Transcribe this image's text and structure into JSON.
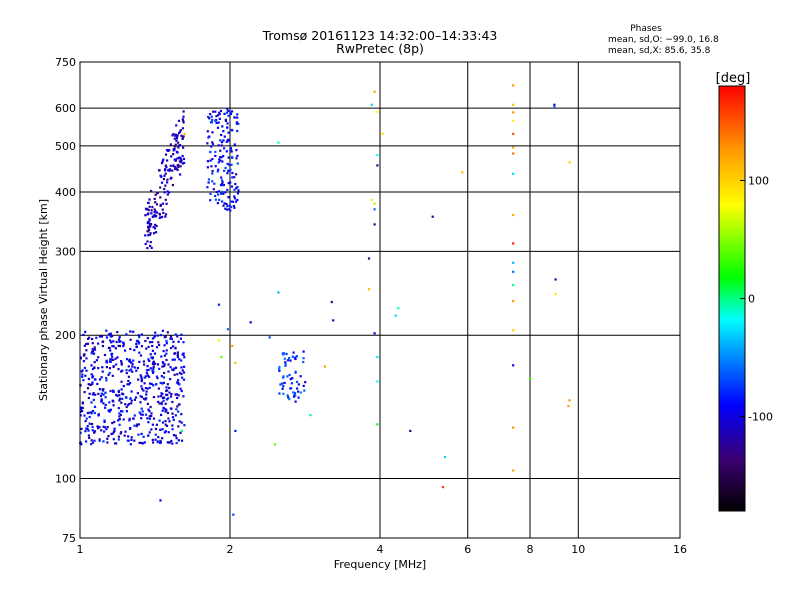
{
  "header": {
    "title_line1": "Tromsø 20161123 14:32:00–14:33:43",
    "title_line2": "RwPretec (8p)",
    "phase_title": "Phases",
    "phase_line1": "mean, sd,O: −99.0, 16.8",
    "phase_line2": "mean, sd,X:  85.6, 35.8"
  },
  "chart_data": {
    "type": "scatter",
    "xlabel": "Frequency [MHz]",
    "ylabel": "Stationary phase Virtual Height [km]",
    "x_scale": "log",
    "y_scale": "log",
    "xlim": [
      1,
      16
    ],
    "ylim": [
      75,
      750
    ],
    "x_ticks": [
      1,
      2,
      4,
      6,
      8,
      10,
      16
    ],
    "y_ticks": [
      75,
      100,
      200,
      300,
      400,
      500,
      600,
      750
    ],
    "grid": true,
    "colorbar": {
      "label": "[deg]",
      "range": [
        -180,
        180
      ],
      "ticks": [
        -100,
        0,
        100
      ],
      "colors": [
        "#000000",
        "#3a0070",
        "#0000ff",
        "#00a0ff",
        "#00ffff",
        "#00ff00",
        "#ffff00",
        "#ff9900",
        "#ff0000"
      ]
    },
    "clusters": [
      {
        "x_range": [
          1.0,
          1.62
        ],
        "y_range": [
          118,
          205
        ],
        "phase": -100
      },
      {
        "x_range": [
          1.35,
          1.62
        ],
        "y_range": [
          305,
          600
        ],
        "phase": -115
      },
      {
        "x_range": [
          1.8,
          2.08
        ],
        "y_range": [
          365,
          600
        ],
        "phase": -90
      },
      {
        "x_range": [
          2.5,
          2.85
        ],
        "y_range": [
          145,
          185
        ],
        "phase": -80
      }
    ],
    "points": [
      {
        "x": 1.62,
        "y": 530,
        "phase": 110
      },
      {
        "x": 1.6,
        "y": 126,
        "phase": 0
      },
      {
        "x": 1.45,
        "y": 90,
        "phase": -100
      },
      {
        "x": 1.9,
        "y": 232,
        "phase": -80
      },
      {
        "x": 1.9,
        "y": 195,
        "phase": 70
      },
      {
        "x": 1.92,
        "y": 180,
        "phase": 40
      },
      {
        "x": 1.98,
        "y": 206,
        "phase": -60
      },
      {
        "x": 2.02,
        "y": 190,
        "phase": 120
      },
      {
        "x": 2.05,
        "y": 175,
        "phase": 110
      },
      {
        "x": 2.05,
        "y": 126,
        "phase": -80
      },
      {
        "x": 2.03,
        "y": 84,
        "phase": -70
      },
      {
        "x": 2.2,
        "y": 213,
        "phase": -110
      },
      {
        "x": 2.4,
        "y": 198,
        "phase": -70
      },
      {
        "x": 2.46,
        "y": 118,
        "phase": 40
      },
      {
        "x": 2.5,
        "y": 508,
        "phase": -10
      },
      {
        "x": 2.5,
        "y": 246,
        "phase": -40
      },
      {
        "x": 2.9,
        "y": 136,
        "phase": 0
      },
      {
        "x": 3.2,
        "y": 235,
        "phase": -130
      },
      {
        "x": 3.22,
        "y": 215,
        "phase": -120
      },
      {
        "x": 3.1,
        "y": 172,
        "phase": 120
      },
      {
        "x": 3.85,
        "y": 610,
        "phase": -30
      },
      {
        "x": 3.9,
        "y": 650,
        "phase": 120
      },
      {
        "x": 3.95,
        "y": 590,
        "phase": 80
      },
      {
        "x": 4.05,
        "y": 530,
        "phase": 90
      },
      {
        "x": 3.95,
        "y": 478,
        "phase": -20
      },
      {
        "x": 3.95,
        "y": 455,
        "phase": -120
      },
      {
        "x": 3.85,
        "y": 385,
        "phase": 70
      },
      {
        "x": 3.9,
        "y": 378,
        "phase": 60
      },
      {
        "x": 3.9,
        "y": 368,
        "phase": -60
      },
      {
        "x": 3.9,
        "y": 342,
        "phase": -120
      },
      {
        "x": 3.8,
        "y": 290,
        "phase": -130
      },
      {
        "x": 3.8,
        "y": 250,
        "phase": 110
      },
      {
        "x": 3.9,
        "y": 202,
        "phase": -100
      },
      {
        "x": 3.95,
        "y": 180,
        "phase": -30
      },
      {
        "x": 3.95,
        "y": 160,
        "phase": -20
      },
      {
        "x": 3.95,
        "y": 130,
        "phase": 20
      },
      {
        "x": 4.35,
        "y": 228,
        "phase": -10
      },
      {
        "x": 4.3,
        "y": 220,
        "phase": -30
      },
      {
        "x": 4.6,
        "y": 126,
        "phase": -130
      },
      {
        "x": 5.1,
        "y": 355,
        "phase": -120
      },
      {
        "x": 5.4,
        "y": 111,
        "phase": -30
      },
      {
        "x": 5.35,
        "y": 96,
        "phase": 160
      },
      {
        "x": 5.85,
        "y": 440,
        "phase": 110
      },
      {
        "x": 7.4,
        "y": 670,
        "phase": 130
      },
      {
        "x": 7.4,
        "y": 610,
        "phase": 110
      },
      {
        "x": 7.4,
        "y": 588,
        "phase": 130
      },
      {
        "x": 7.4,
        "y": 565,
        "phase": 90
      },
      {
        "x": 7.4,
        "y": 530,
        "phase": 150
      },
      {
        "x": 7.4,
        "y": 496,
        "phase": 120
      },
      {
        "x": 7.4,
        "y": 482,
        "phase": 140
      },
      {
        "x": 7.4,
        "y": 437,
        "phase": -30
      },
      {
        "x": 7.4,
        "y": 358,
        "phase": 120
      },
      {
        "x": 7.4,
        "y": 312,
        "phase": 170
      },
      {
        "x": 7.4,
        "y": 284,
        "phase": -40
      },
      {
        "x": 7.4,
        "y": 272,
        "phase": -60
      },
      {
        "x": 7.4,
        "y": 255,
        "phase": 0
      },
      {
        "x": 7.4,
        "y": 236,
        "phase": 130
      },
      {
        "x": 7.4,
        "y": 205,
        "phase": 100
      },
      {
        "x": 7.4,
        "y": 173,
        "phase": -100
      },
      {
        "x": 7.4,
        "y": 128,
        "phase": 130
      },
      {
        "x": 7.4,
        "y": 104,
        "phase": 120
      },
      {
        "x": 8.0,
        "y": 162,
        "phase": 30
      },
      {
        "x": 8.95,
        "y": 610,
        "phase": -110
      },
      {
        "x": 8.95,
        "y": 606,
        "phase": -70
      },
      {
        "x": 9.0,
        "y": 262,
        "phase": -110
      },
      {
        "x": 9.0,
        "y": 244,
        "phase": 90
      },
      {
        "x": 9.6,
        "y": 462,
        "phase": 100
      },
      {
        "x": 9.6,
        "y": 146,
        "phase": 130
      },
      {
        "x": 9.55,
        "y": 142,
        "phase": 120
      }
    ]
  }
}
